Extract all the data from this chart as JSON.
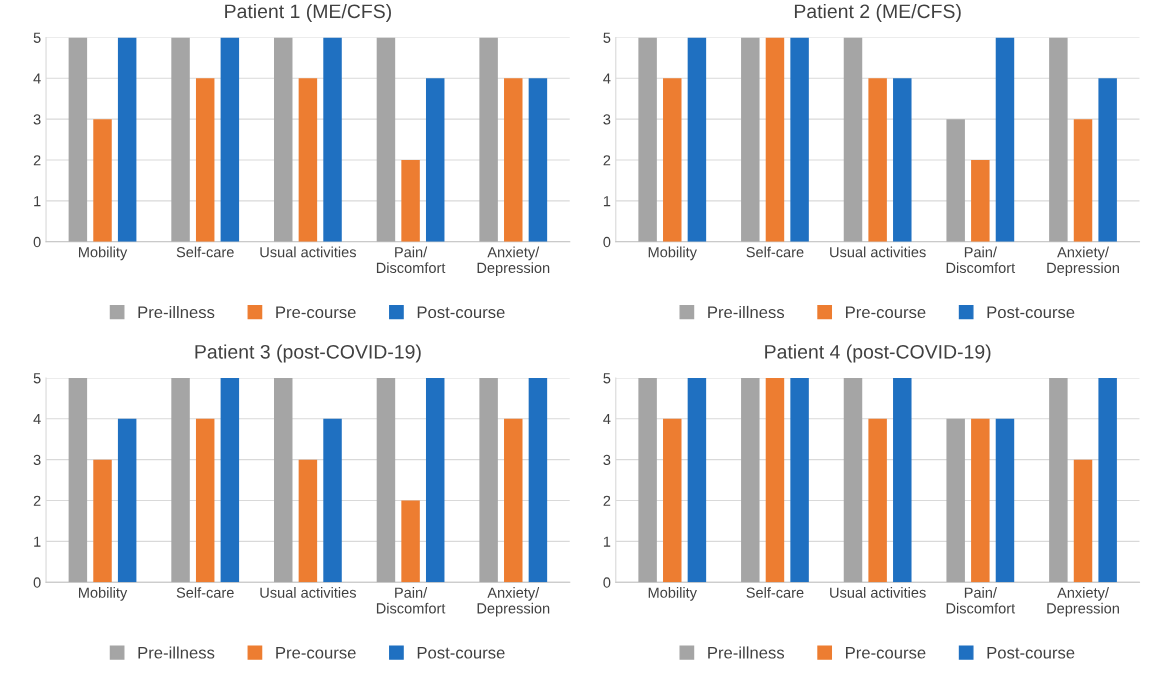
{
  "chart_data": [
    {
      "type": "bar",
      "title": "Patient 1 (ME/CFS)",
      "categories": [
        "Mobility",
        "Self-care",
        "Usual activities",
        "Pain/\nDiscomfort",
        "Anxiety/\nDepression"
      ],
      "ylim": [
        0,
        5
      ],
      "yticks": [
        0,
        1,
        2,
        3,
        4,
        5
      ],
      "grid": "y",
      "legend": "bottom",
      "series": [
        {
          "name": "Pre-illness",
          "color": "#a5a5a5",
          "values": [
            5,
            5,
            5,
            5,
            5
          ]
        },
        {
          "name": "Pre-course",
          "color": "#ed7d31",
          "values": [
            3,
            4,
            4,
            2,
            4
          ]
        },
        {
          "name": "Post-course",
          "color": "#1f70c1",
          "values": [
            5,
            5,
            5,
            4,
            4
          ]
        }
      ]
    },
    {
      "type": "bar",
      "title": "Patient 2 (ME/CFS)",
      "categories": [
        "Mobility",
        "Self-care",
        "Usual activities",
        "Pain/\nDiscomfort",
        "Anxiety/\nDepression"
      ],
      "ylim": [
        0,
        5
      ],
      "yticks": [
        0,
        1,
        2,
        3,
        4,
        5
      ],
      "grid": "y",
      "legend": "bottom",
      "series": [
        {
          "name": "Pre-illness",
          "color": "#a5a5a5",
          "values": [
            5,
            5,
            5,
            3,
            5
          ]
        },
        {
          "name": "Pre-course",
          "color": "#ed7d31",
          "values": [
            4,
            5,
            4,
            2,
            3
          ]
        },
        {
          "name": "Post-course",
          "color": "#1f70c1",
          "values": [
            5,
            5,
            4,
            5,
            4
          ]
        }
      ]
    },
    {
      "type": "bar",
      "title": "Patient 3 (post-COVID-19)",
      "categories": [
        "Mobility",
        "Self-care",
        "Usual activities",
        "Pain/\nDiscomfort",
        "Anxiety/\nDepression"
      ],
      "ylim": [
        0,
        5
      ],
      "yticks": [
        0,
        1,
        2,
        3,
        4,
        5
      ],
      "grid": "y",
      "legend": "bottom",
      "series": [
        {
          "name": "Pre-illness",
          "color": "#a5a5a5",
          "values": [
            5,
            5,
            5,
            5,
            5
          ]
        },
        {
          "name": "Pre-course",
          "color": "#ed7d31",
          "values": [
            3,
            4,
            3,
            2,
            4
          ]
        },
        {
          "name": "Post-course",
          "color": "#1f70c1",
          "values": [
            4,
            5,
            4,
            5,
            5
          ]
        }
      ]
    },
    {
      "type": "bar",
      "title": "Patient 4 (post-COVID-19)",
      "categories": [
        "Mobility",
        "Self-care",
        "Usual activities",
        "Pain/\nDiscomfort",
        "Anxiety/\nDepression"
      ],
      "ylim": [
        0,
        5
      ],
      "yticks": [
        0,
        1,
        2,
        3,
        4,
        5
      ],
      "grid": "y",
      "legend": "bottom",
      "series": [
        {
          "name": "Pre-illness",
          "color": "#a5a5a5",
          "values": [
            5,
            5,
            5,
            4,
            5
          ]
        },
        {
          "name": "Pre-course",
          "color": "#ed7d31",
          "values": [
            4,
            5,
            4,
            4,
            3
          ]
        },
        {
          "name": "Post-course",
          "color": "#1f70c1",
          "values": [
            5,
            5,
            5,
            4,
            5
          ]
        }
      ]
    }
  ]
}
